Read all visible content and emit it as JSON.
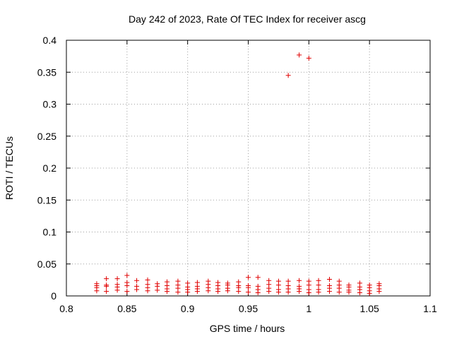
{
  "chart_data": {
    "type": "scatter",
    "title": "Day 242 of 2023, Rate Of TEC Index for receiver ascg",
    "xlabel": "GPS time / hours",
    "ylabel": "ROTI / TECUs",
    "xlim": [
      0.8,
      1.1
    ],
    "ylim": [
      0,
      0.4
    ],
    "xticks": [
      "0.8",
      "0.85",
      "0.9",
      "0.95",
      "1",
      "1.05",
      "1.1"
    ],
    "yticks": [
      "0",
      "0.05",
      "0.1",
      "0.15",
      "0.2",
      "0.25",
      "0.3",
      "0.35",
      "0.4"
    ],
    "grid": true,
    "marker": "+",
    "color": "#e00000",
    "series": [
      {
        "points": [
          [
            0.825,
            0.019
          ],
          [
            0.825,
            0.016
          ],
          [
            0.825,
            0.013
          ],
          [
            0.825,
            0.008
          ],
          [
            0.833,
            0.027
          ],
          [
            0.833,
            0.017
          ],
          [
            0.833,
            0.015
          ],
          [
            0.833,
            0.007
          ],
          [
            0.842,
            0.027
          ],
          [
            0.842,
            0.018
          ],
          [
            0.842,
            0.014
          ],
          [
            0.842,
            0.009
          ],
          [
            0.85,
            0.032
          ],
          [
            0.85,
            0.021
          ],
          [
            0.85,
            0.016
          ],
          [
            0.85,
            0.007
          ],
          [
            0.858,
            0.024
          ],
          [
            0.858,
            0.015
          ],
          [
            0.858,
            0.01
          ],
          [
            0.867,
            0.025
          ],
          [
            0.867,
            0.018
          ],
          [
            0.867,
            0.013
          ],
          [
            0.867,
            0.008
          ],
          [
            0.875,
            0.019
          ],
          [
            0.875,
            0.015
          ],
          [
            0.875,
            0.009
          ],
          [
            0.883,
            0.022
          ],
          [
            0.883,
            0.016
          ],
          [
            0.883,
            0.011
          ],
          [
            0.883,
            0.007
          ],
          [
            0.892,
            0.023
          ],
          [
            0.892,
            0.017
          ],
          [
            0.892,
            0.012
          ],
          [
            0.892,
            0.006
          ],
          [
            0.9,
            0.02
          ],
          [
            0.9,
            0.014
          ],
          [
            0.9,
            0.01
          ],
          [
            0.9,
            0.006
          ],
          [
            0.908,
            0.021
          ],
          [
            0.908,
            0.015
          ],
          [
            0.908,
            0.011
          ],
          [
            0.908,
            0.007
          ],
          [
            0.917,
            0.023
          ],
          [
            0.917,
            0.018
          ],
          [
            0.917,
            0.013
          ],
          [
            0.917,
            0.008
          ],
          [
            0.925,
            0.021
          ],
          [
            0.925,
            0.016
          ],
          [
            0.925,
            0.011
          ],
          [
            0.925,
            0.007
          ],
          [
            0.933,
            0.02
          ],
          [
            0.933,
            0.017
          ],
          [
            0.933,
            0.012
          ],
          [
            0.933,
            0.008
          ],
          [
            0.942,
            0.022
          ],
          [
            0.942,
            0.016
          ],
          [
            0.942,
            0.013
          ],
          [
            0.942,
            0.007
          ],
          [
            0.95,
            0.029
          ],
          [
            0.95,
            0.016
          ],
          [
            0.95,
            0.013
          ],
          [
            0.95,
            0.006
          ],
          [
            0.958,
            0.029
          ],
          [
            0.958,
            0.015
          ],
          [
            0.958,
            0.01
          ],
          [
            0.958,
            0.005
          ],
          [
            0.967,
            0.024
          ],
          [
            0.967,
            0.018
          ],
          [
            0.967,
            0.012
          ],
          [
            0.967,
            0.007
          ],
          [
            0.975,
            0.023
          ],
          [
            0.975,
            0.017
          ],
          [
            0.975,
            0.01
          ],
          [
            0.975,
            0.006
          ],
          [
            0.983,
            0.345
          ],
          [
            0.983,
            0.023
          ],
          [
            0.983,
            0.016
          ],
          [
            0.983,
            0.011
          ],
          [
            0.983,
            0.006
          ],
          [
            0.992,
            0.377
          ],
          [
            0.992,
            0.024
          ],
          [
            0.992,
            0.015
          ],
          [
            0.992,
            0.011
          ],
          [
            0.992,
            0.007
          ],
          [
            1.0,
            0.372
          ],
          [
            1.0,
            0.023
          ],
          [
            1.0,
            0.017
          ],
          [
            1.0,
            0.01
          ],
          [
            1.0,
            0.005
          ],
          [
            1.008,
            0.024
          ],
          [
            1.008,
            0.017
          ],
          [
            1.008,
            0.01
          ],
          [
            1.008,
            0.006
          ],
          [
            1.017,
            0.026
          ],
          [
            1.017,
            0.016
          ],
          [
            1.017,
            0.012
          ],
          [
            1.017,
            0.007
          ],
          [
            1.025,
            0.023
          ],
          [
            1.025,
            0.017
          ],
          [
            1.025,
            0.012
          ],
          [
            1.025,
            0.006
          ],
          [
            1.033,
            0.017
          ],
          [
            1.033,
            0.014
          ],
          [
            1.033,
            0.009
          ],
          [
            1.033,
            0.006
          ],
          [
            1.042,
            0.02
          ],
          [
            1.042,
            0.014
          ],
          [
            1.042,
            0.01
          ],
          [
            1.042,
            0.005
          ],
          [
            1.05,
            0.017
          ],
          [
            1.05,
            0.013
          ],
          [
            1.05,
            0.008
          ],
          [
            1.05,
            0.004
          ],
          [
            1.058,
            0.019
          ],
          [
            1.058,
            0.016
          ],
          [
            1.058,
            0.011
          ],
          [
            1.058,
            0.007
          ]
        ]
      }
    ]
  }
}
